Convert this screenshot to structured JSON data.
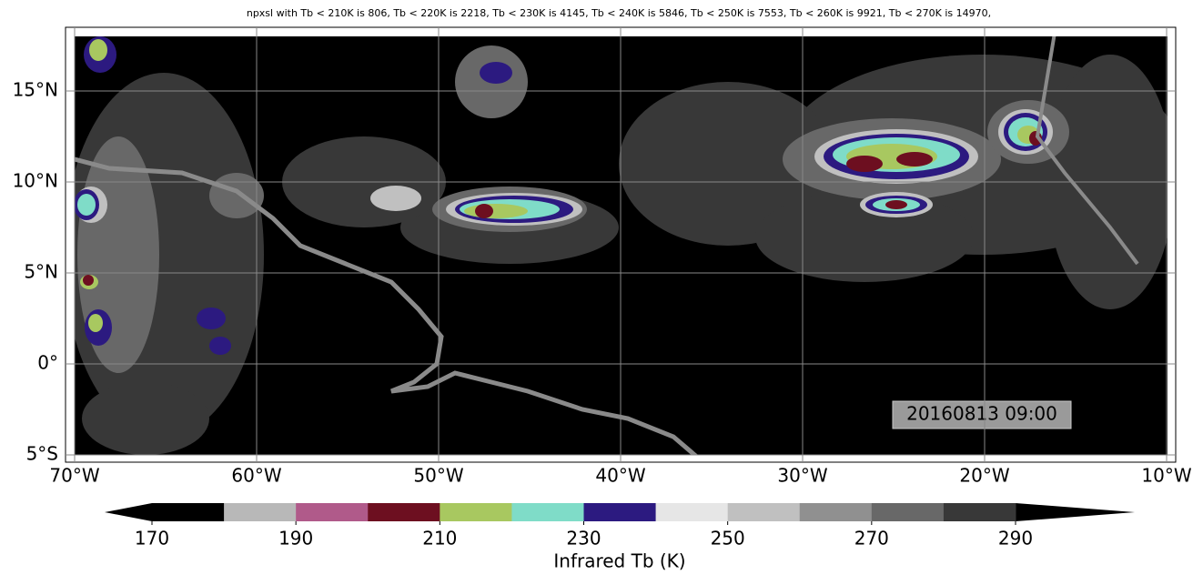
{
  "chart_data": {
    "type": "map",
    "title": "npxsl with Tb < 210K is 806,  Tb < 220K is 2218,  Tb < 230K is 4145,  Tb < 240K is 5846,  Tb < 250K is 7553,  Tb < 260K is 9921,  Tb < 270K is 14970,",
    "timestamp": "20160813 09:00",
    "xlim": [
      -70.5,
      -9.5
    ],
    "ylim": [
      -5.4,
      18.5
    ],
    "xticks": [
      {
        "value": -70,
        "label": "70°W"
      },
      {
        "value": -60,
        "label": "60°W"
      },
      {
        "value": -50,
        "label": "50°W"
      },
      {
        "value": -40,
        "label": "40°W"
      },
      {
        "value": -30,
        "label": "30°W"
      },
      {
        "value": -20,
        "label": "20°W"
      },
      {
        "value": -10,
        "label": "10°W"
      }
    ],
    "yticks": [
      {
        "value": -5,
        "label": "5°S"
      },
      {
        "value": 0,
        "label": "0°"
      },
      {
        "value": 5,
        "label": "5°N"
      },
      {
        "value": 10,
        "label": "10°N"
      },
      {
        "value": 15,
        "label": "15°N"
      }
    ],
    "grid": true,
    "colorbar": {
      "label": "Infrared Tb (K)",
      "bounds": [
        170,
        180,
        190,
        200,
        210,
        220,
        230,
        240,
        250,
        260,
        270,
        280,
        290
      ],
      "colors": [
        "#000000",
        "#b8b8b8",
        "#b05a8a",
        "#6d0f20",
        "#a8c860",
        "#7fdcc8",
        "#2c1a80",
        "#e6e6e6",
        "#c0c0c0",
        "#909090",
        "#686868",
        "#383838"
      ],
      "ticks": [
        170,
        190,
        210,
        230,
        250,
        270,
        290
      ],
      "extend_color": "#000000"
    }
  }
}
